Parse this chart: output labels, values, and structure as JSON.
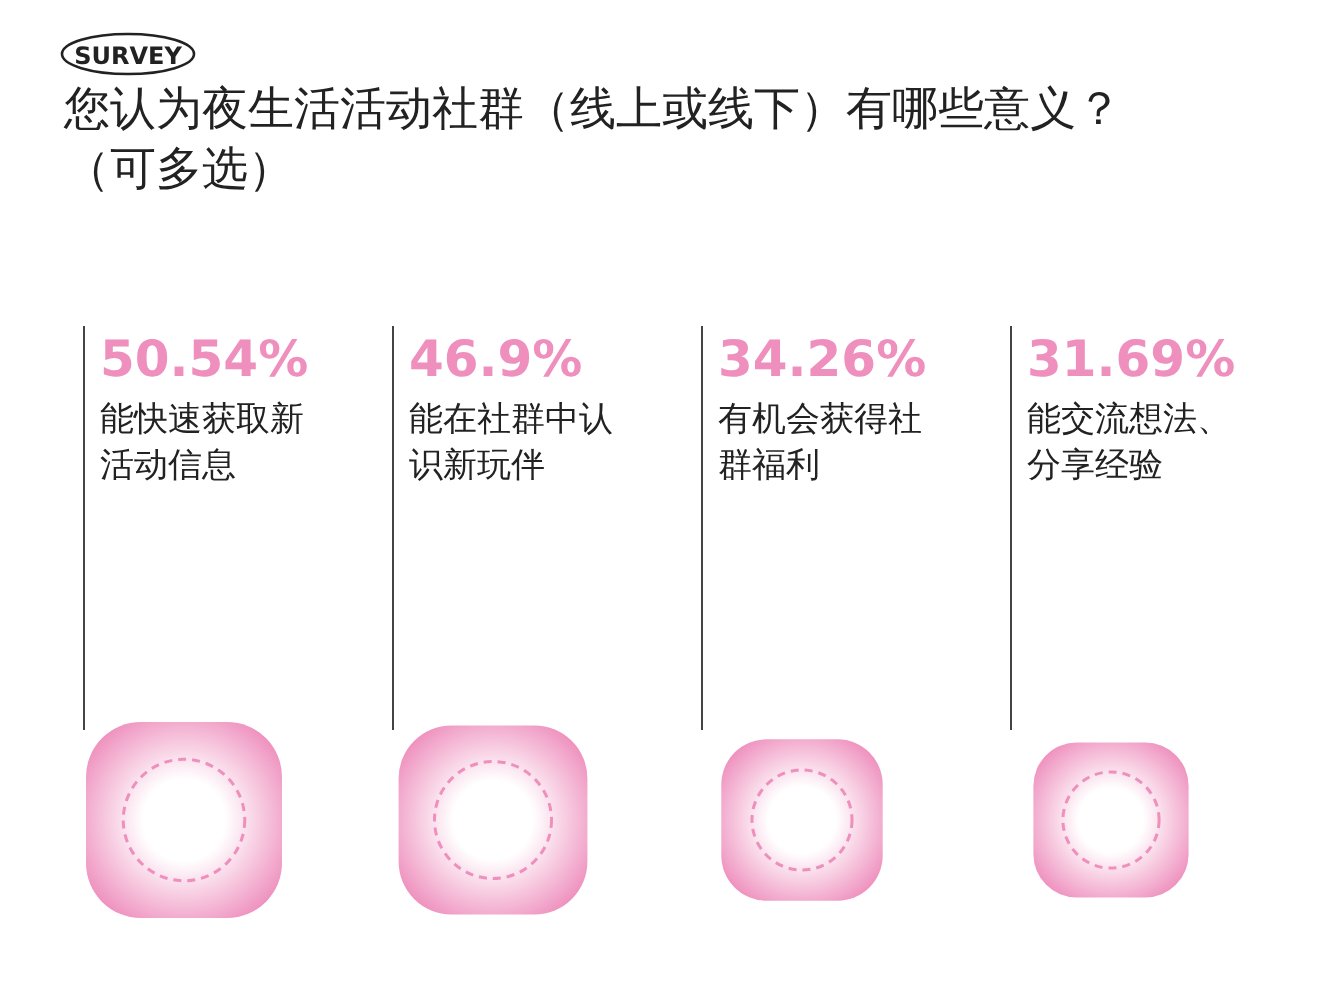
{
  "chart_data": {
    "type": "other",
    "title": "您认为夜生活活动社群（线上或线下）有哪些意义？（可多选）",
    "annotations": [
      "SURVEY"
    ],
    "categories": [
      "能快速获取新活动信息",
      "能在社群中认识新玩伴",
      "有机会获得社群福利",
      "能交流想法、分享经验"
    ],
    "values": [
      50.54,
      46.9,
      34.26,
      31.69
    ],
    "value_labels": [
      "50.54%",
      "46.9%",
      "34.26%",
      "31.69%"
    ],
    "color": "#ee8fbd"
  }
}
